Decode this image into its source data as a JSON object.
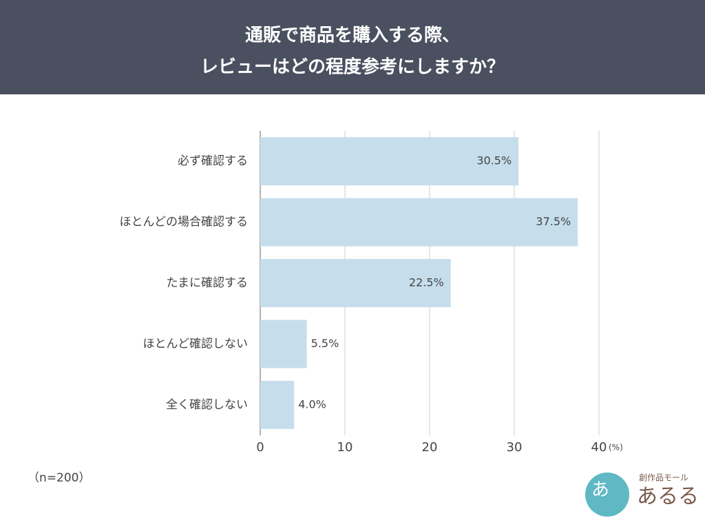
{
  "chart_data": {
    "type": "hbar",
    "title": [
      "通販で商品を購入する際、",
      "レビューはどの程度参考にしますか？"
    ],
    "categories": [
      "必ず確認する",
      "ほとんどの場合確認する",
      "たまに確認する",
      "ほとんど確認しない",
      "全く確認しない"
    ],
    "values": [
      30.5,
      37.5,
      22.5,
      5.5,
      4.0
    ],
    "value_labels": [
      "30.5%",
      "37.5%",
      "22.5%",
      "5.5%",
      "4.0%"
    ],
    "color": "#c6deec",
    "xlim": [
      0,
      40
    ],
    "xticks": [
      0,
      10,
      20,
      30,
      40
    ],
    "x_unit": "(%)",
    "grid": true,
    "note": "（n=200）"
  },
  "logo": {
    "mark": "あ",
    "tagline": "創作品モール",
    "name": "あるる"
  }
}
